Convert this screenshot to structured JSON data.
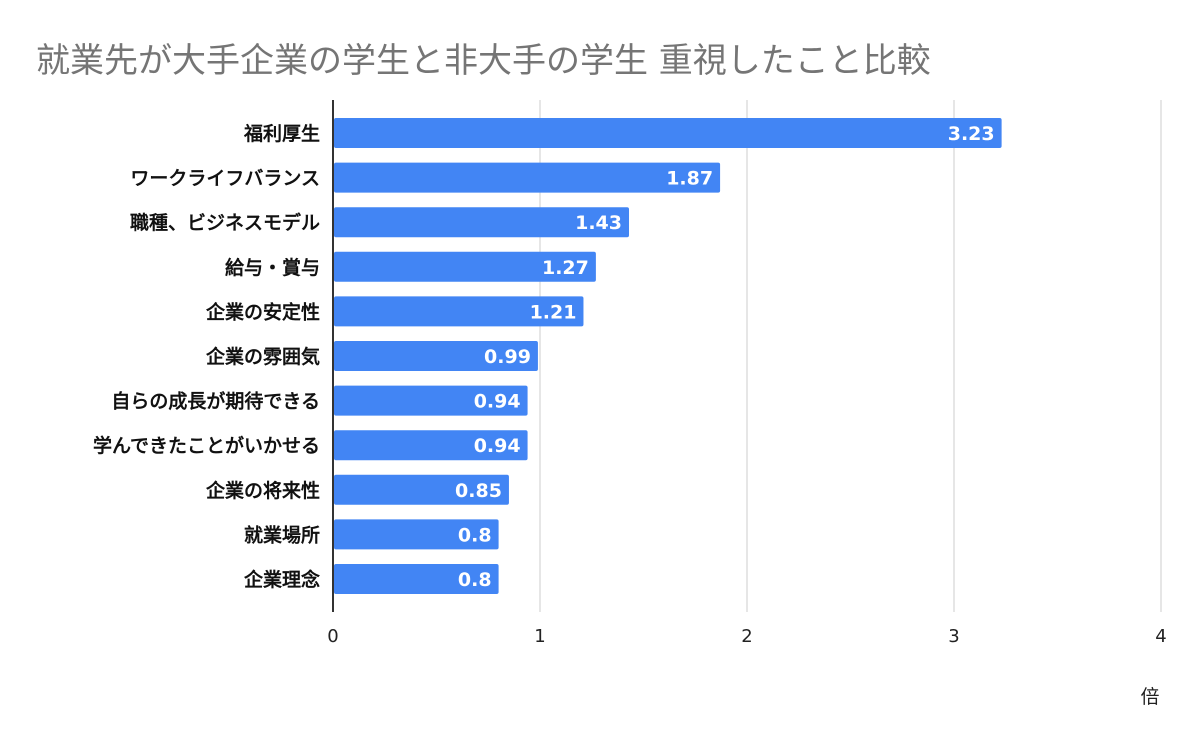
{
  "chart_data": {
    "type": "bar",
    "orientation": "horizontal",
    "title": "就業先が大手企業の学生と非大手の学生 重視したこと比較",
    "xlabel": "倍",
    "ylabel": "",
    "categories": [
      "福利厚生",
      "ワークライフバランス",
      "職種、ビジネスモデル",
      "給与・賞与",
      "企業の安定性",
      "企業の雰囲気",
      "自らの成長が期待できる",
      "学んできたことがいかせる",
      "企業の将来性",
      "就業場所",
      "企業理念"
    ],
    "values": [
      3.23,
      1.87,
      1.43,
      1.27,
      1.21,
      0.99,
      0.94,
      0.94,
      0.85,
      0.8,
      0.8
    ],
    "xlim": [
      0,
      4
    ],
    "xticks": [
      "0",
      "1",
      "2",
      "3",
      "4"
    ],
    "grid": true,
    "data_labels": true,
    "legend": "none",
    "colors": {
      "bar": "#4285f4",
      "title": "#757575",
      "grid": "#cccccc",
      "axis": "#333333"
    }
  }
}
